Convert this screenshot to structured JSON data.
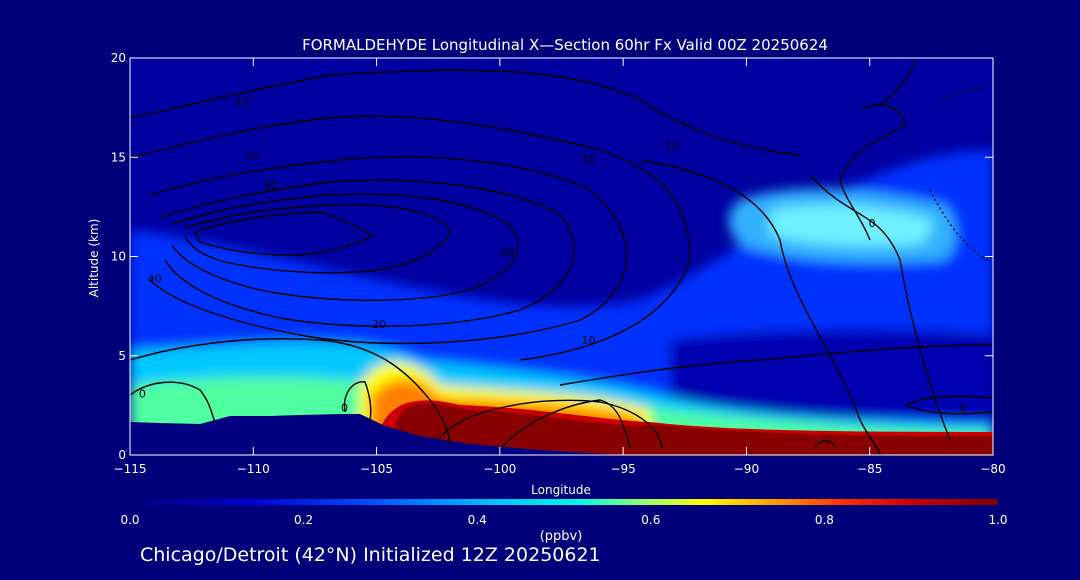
{
  "chart_data": {
    "type": "heatmap",
    "title": "FORMALDEHYDE Longitudinal X—Section 60hr  Fx Valid 00Z 20250624",
    "xlabel": "Longitude",
    "ylabel": "Altitude (km)",
    "xlim": [
      -115,
      -80
    ],
    "ylim": [
      0,
      20
    ],
    "x_ticks": [
      -115,
      -110,
      -105,
      -100,
      -95,
      -90,
      -85,
      -80
    ],
    "x_tick_labels": [
      "−115",
      "−110",
      "−105",
      "−100",
      "−95",
      "−90",
      "−85",
      "−80"
    ],
    "y_ticks": [
      0,
      5,
      10,
      15,
      20
    ],
    "y_tick_labels": [
      "0",
      "5",
      "10",
      "15",
      "20"
    ],
    "colorbar": {
      "label": "(ppbv)",
      "range": [
        0.0,
        1.0
      ],
      "tick_values": [
        0.0,
        0.2,
        0.4,
        0.6,
        0.8,
        1.0
      ],
      "tick_labels": [
        "0.0",
        "0.2",
        "0.4",
        "0.6",
        "0.8",
        "1.0"
      ],
      "colors": [
        "#000080",
        "#0000ff",
        "#0080ff",
        "#00ffff",
        "#ffff00",
        "#ff8000",
        "#ff0000",
        "#800000"
      ]
    },
    "contour_labels": [
      {
        "text": "10",
        "lon": -110.5,
        "alt": 17.8
      },
      {
        "text": "20",
        "lon": -110.0,
        "alt": 15.1
      },
      {
        "text": "30",
        "lon": -109.3,
        "alt": 13.6
      },
      {
        "text": "40",
        "lon": -114.0,
        "alt": 8.9
      },
      {
        "text": "30",
        "lon": -99.7,
        "alt": 10.2
      },
      {
        "text": "20",
        "lon": -104.9,
        "alt": 6.6
      },
      {
        "text": "10",
        "lon": -96.4,
        "alt": 5.8
      },
      {
        "text": "0",
        "lon": -114.5,
        "alt": 3.1
      },
      {
        "text": "0",
        "lon": -106.3,
        "alt": 2.4
      },
      {
        "text": "10",
        "lon": -96.4,
        "alt": 14.9
      },
      {
        "text": "10",
        "lon": -93.0,
        "alt": 15.6
      },
      {
        "text": "0",
        "lon": -84.9,
        "alt": 11.7
      },
      {
        "text": "0",
        "lon": -81.2,
        "alt": 2.4
      }
    ]
  },
  "footer_text": "Chicago/Detroit (42°N) Initialized 12Z 20250621"
}
